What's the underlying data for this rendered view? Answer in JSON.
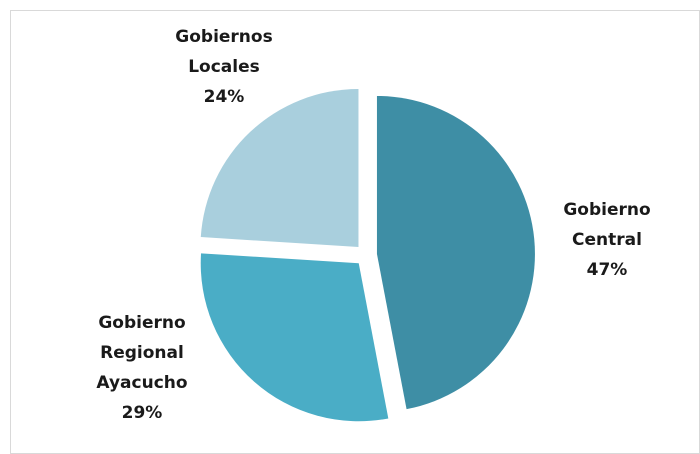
{
  "chart_data": {
    "type": "pie",
    "categories": [
      "Gobierno Central",
      "Gobierno Regional Ayacucho",
      "Gobiernos Locales"
    ],
    "values": [
      47,
      29,
      24
    ],
    "value_labels": [
      "47%",
      "29%",
      "24%"
    ],
    "colors": [
      "#3e8ea5",
      "#4aadc6",
      "#a9cfdd"
    ]
  }
}
